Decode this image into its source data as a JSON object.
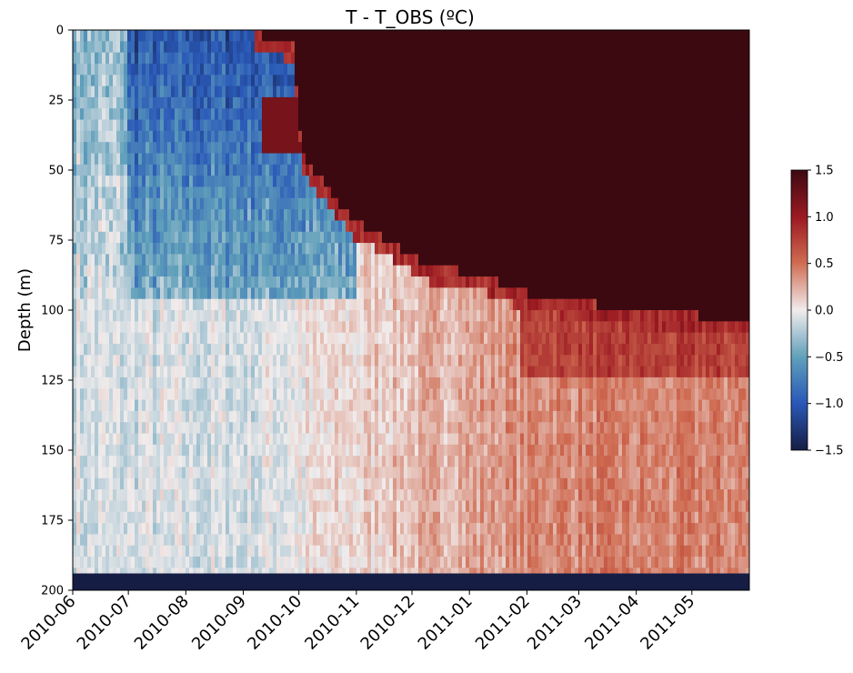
{
  "chart_data": {
    "type": "heatmap",
    "title": "T - T_OBS (ºC)",
    "xlabel": "",
    "ylabel": "Depth (m)",
    "x_ticks": [
      "2010-06",
      "2010-07",
      "2010-08",
      "2010-09",
      "2010-10",
      "2010-11",
      "2010-12",
      "2011-01",
      "2011-02",
      "2011-03",
      "2011-04",
      "2011-05"
    ],
    "x_range": [
      "2010-06-01",
      "2011-06-01"
    ],
    "y_ticks": [
      "0",
      "25",
      "50",
      "75",
      "100",
      "125",
      "150",
      "175",
      "200"
    ],
    "y_range": [
      0,
      200
    ],
    "y_inverted": true,
    "colorbar": {
      "ticks": [
        "1.5",
        "1.0",
        "0.5",
        "0.0",
        "−0.5",
        "−1.0",
        "−1.5"
      ],
      "vmin": -1.5,
      "vmax": 1.5,
      "colormap": "balance"
    },
    "features": {
      "bottom_mask_depth": 194,
      "mixed_layer_max_depth_m": [
        {
          "date": "2010-06-01",
          "depth": 0
        },
        {
          "date": "2010-09-01",
          "depth": 0
        },
        {
          "date": "2010-09-28",
          "depth": 5
        },
        {
          "date": "2010-10-03",
          "depth": 45
        },
        {
          "date": "2010-10-15",
          "depth": 55
        },
        {
          "date": "2010-10-30",
          "depth": 68
        },
        {
          "date": "2010-11-10",
          "depth": 72
        },
        {
          "date": "2010-11-25",
          "depth": 78
        },
        {
          "date": "2010-12-10",
          "depth": 84
        },
        {
          "date": "2011-01-10",
          "depth": 88
        },
        {
          "date": "2011-02-01",
          "depth": 94
        },
        {
          "date": "2011-03-10",
          "depth": 98
        },
        {
          "date": "2011-04-20",
          "depth": 101
        },
        {
          "date": "2011-06-01",
          "depth": 104
        }
      ],
      "typical_values": {
        "surface_after_oct": 1.5,
        "summer_upper_layer": -1.0,
        "deep_2011": 0.4,
        "deep_2010_summer": -0.1
      }
    }
  }
}
